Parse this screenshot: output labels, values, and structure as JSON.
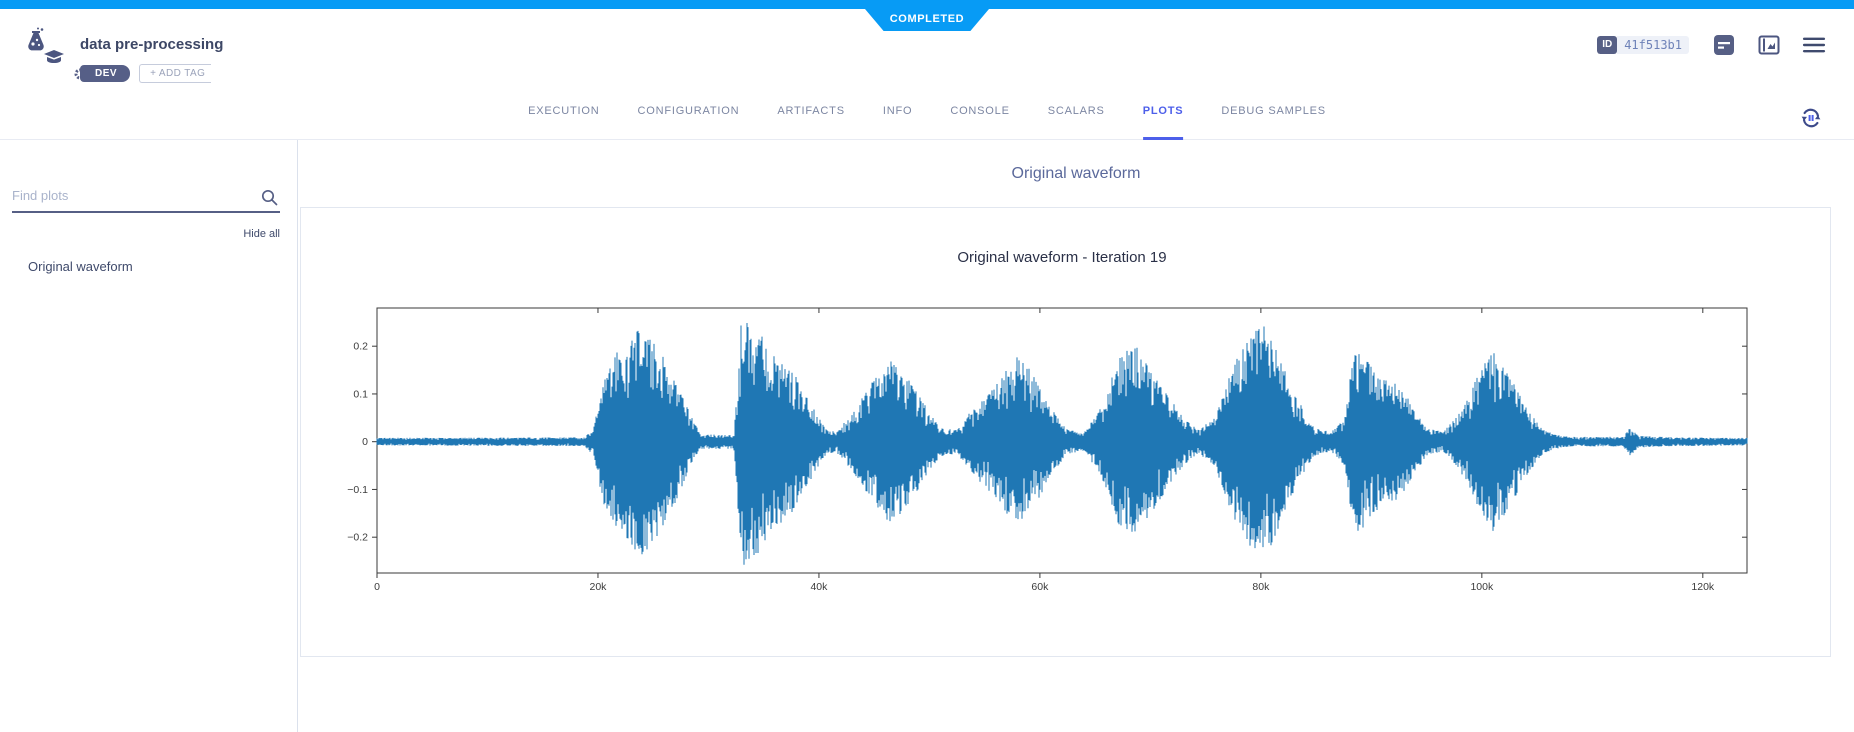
{
  "colors": {
    "ribbon_blue": "#079bf5",
    "accent_blue": "#4d5fea",
    "dark_text": "#3d4766",
    "icon_color": "#4c5680",
    "waveform_blue": "#1f77b4"
  },
  "status_banner": {
    "label": "COMPLETED"
  },
  "header": {
    "title": "data pre-processing",
    "tags": [
      {
        "label": "DEV"
      }
    ],
    "add_tag_label": "+ ADD TAG",
    "id_label": "ID",
    "id_value": "41f513b1"
  },
  "tabs": {
    "items": [
      "EXECUTION",
      "CONFIGURATION",
      "ARTIFACTS",
      "INFO",
      "CONSOLE",
      "SCALARS",
      "PLOTS",
      "DEBUG SAMPLES"
    ],
    "active": "PLOTS"
  },
  "sidebar": {
    "search_placeholder": "Find plots",
    "hide_all_label": "Hide all",
    "items": [
      "Original waveform"
    ]
  },
  "main": {
    "section_title": "Original waveform"
  },
  "chart_data": {
    "type": "line",
    "title": "Original waveform - Iteration 19",
    "xlabel": "",
    "ylabel": "",
    "xlim": [
      0,
      124000
    ],
    "ylim": [
      -0.275,
      0.28
    ],
    "x_ticks": [
      {
        "value": 0,
        "label": "0"
      },
      {
        "value": 20000,
        "label": "20k"
      },
      {
        "value": 40000,
        "label": "40k"
      },
      {
        "value": 60000,
        "label": "60k"
      },
      {
        "value": 80000,
        "label": "80k"
      },
      {
        "value": 100000,
        "label": "100k"
      },
      {
        "value": 120000,
        "label": "120k"
      }
    ],
    "y_ticks": [
      {
        "value": 0.2,
        "label": "0.2"
      },
      {
        "value": 0.1,
        "label": "0.1"
      },
      {
        "value": 0,
        "label": "0"
      },
      {
        "value": -0.1,
        "label": "−0.1"
      },
      {
        "value": -0.2,
        "label": "−0.2"
      }
    ],
    "grid": false,
    "legend": "none",
    "line_color": "#1f77b4",
    "description": "Speech audio waveform: quiet noise floor to ~19k samples, eight voiced bursts between ~20k and ~105k samples (peak amplitudes 0.17–0.26), quiet tail to ~124k with a small blip near 113k.",
    "envelope_points": [
      [
        0,
        0.008
      ],
      [
        18800,
        0.009
      ],
      [
        19600,
        0.03
      ],
      [
        20500,
        0.13
      ],
      [
        22000,
        0.2
      ],
      [
        24000,
        0.24
      ],
      [
        25500,
        0.2
      ],
      [
        27000,
        0.13
      ],
      [
        28500,
        0.05
      ],
      [
        29300,
        0.015
      ],
      [
        32300,
        0.015
      ],
      [
        33000,
        0.26
      ],
      [
        34500,
        0.23
      ],
      [
        36000,
        0.19
      ],
      [
        37500,
        0.15
      ],
      [
        39000,
        0.09
      ],
      [
        40500,
        0.03
      ],
      [
        41500,
        0.02
      ],
      [
        43000,
        0.06
      ],
      [
        45000,
        0.13
      ],
      [
        46500,
        0.17
      ],
      [
        48000,
        0.14
      ],
      [
        49500,
        0.08
      ],
      [
        51000,
        0.03
      ],
      [
        52500,
        0.025
      ],
      [
        54000,
        0.07
      ],
      [
        56000,
        0.12
      ],
      [
        58000,
        0.18
      ],
      [
        59500,
        0.14
      ],
      [
        61000,
        0.07
      ],
      [
        62500,
        0.025
      ],
      [
        64000,
        0.02
      ],
      [
        65500,
        0.07
      ],
      [
        67000,
        0.17
      ],
      [
        68500,
        0.21
      ],
      [
        70000,
        0.15
      ],
      [
        71500,
        0.1
      ],
      [
        73000,
        0.05
      ],
      [
        74300,
        0.025
      ],
      [
        75800,
        0.05
      ],
      [
        77500,
        0.16
      ],
      [
        79000,
        0.22
      ],
      [
        80300,
        0.25
      ],
      [
        81800,
        0.17
      ],
      [
        83300,
        0.09
      ],
      [
        84800,
        0.03
      ],
      [
        86300,
        0.02
      ],
      [
        87600,
        0.05
      ],
      [
        88400,
        0.2
      ],
      [
        89600,
        0.17
      ],
      [
        91000,
        0.13
      ],
      [
        92500,
        0.12
      ],
      [
        93800,
        0.07
      ],
      [
        95000,
        0.03
      ],
      [
        96500,
        0.02
      ],
      [
        98000,
        0.06
      ],
      [
        99500,
        0.13
      ],
      [
        101000,
        0.19
      ],
      [
        102300,
        0.15
      ],
      [
        103800,
        0.08
      ],
      [
        105300,
        0.03
      ],
      [
        106500,
        0.015
      ],
      [
        108000,
        0.01
      ],
      [
        112800,
        0.01
      ],
      [
        113400,
        0.03
      ],
      [
        114200,
        0.012
      ],
      [
        118000,
        0.009
      ],
      [
        124000,
        0.008
      ]
    ]
  }
}
